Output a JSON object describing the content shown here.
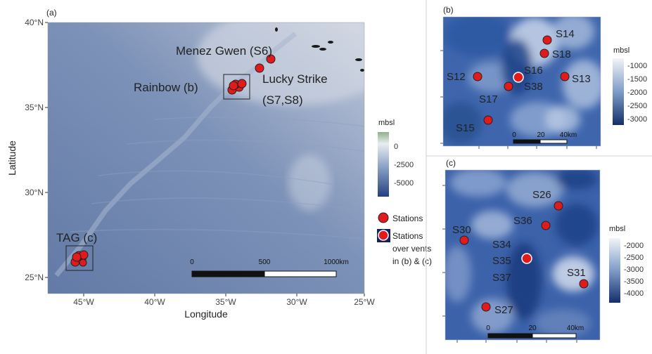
{
  "panel_a": {
    "tag": "(a)",
    "xlabel": "Longitude",
    "ylabel": "Latitude",
    "x_ticks": [
      "45°W",
      "40°W",
      "35°W",
      "30°W",
      "25°W"
    ],
    "y_ticks": [
      "40°N",
      "35°N",
      "30°N",
      "25°N"
    ],
    "sites": [
      {
        "label": "Menez Gwen (S6)"
      },
      {
        "label": "Rainbow (b)"
      },
      {
        "label": "Lucky Strike"
      },
      {
        "label": "(S7,S8)"
      },
      {
        "label": "TAG (c)"
      }
    ],
    "depth_legend": {
      "title": "mbsl",
      "ticks": [
        "0",
        "-2500",
        "-5000"
      ]
    },
    "station_legend": {
      "stations": "Stations",
      "vents_line1": "Stations",
      "vents_line2": "over vents",
      "vents_line3": "in (b) & (c)"
    },
    "scale_bar": {
      "labels": [
        "0",
        "500",
        "1000km"
      ]
    }
  },
  "panel_b": {
    "tag": "(b)",
    "stations": [
      "S14",
      "S18",
      "S16",
      "S38",
      "S12",
      "S13",
      "S17",
      "S15"
    ],
    "depth_legend": {
      "title": "mbsl",
      "ticks": [
        "-1000",
        "-1500",
        "-2000",
        "-2500",
        "-3000"
      ]
    },
    "scale_bar": {
      "labels": [
        "0",
        "20",
        "40km"
      ]
    }
  },
  "panel_c": {
    "tag": "(c)",
    "stations": [
      "S26",
      "S36",
      "S30",
      "S34",
      "S35",
      "S37",
      "S31",
      "S27"
    ],
    "depth_legend": {
      "title": "mbsl",
      "ticks": [
        "-2000",
        "-2500",
        "-3000",
        "-3500",
        "-4000"
      ]
    },
    "scale_bar": {
      "labels": [
        "0",
        "20",
        "40km"
      ]
    }
  },
  "colors": {
    "station_fill": "#e31a1c",
    "vent_ring": "#ffffff",
    "legend_vent_box": "#14215e"
  }
}
